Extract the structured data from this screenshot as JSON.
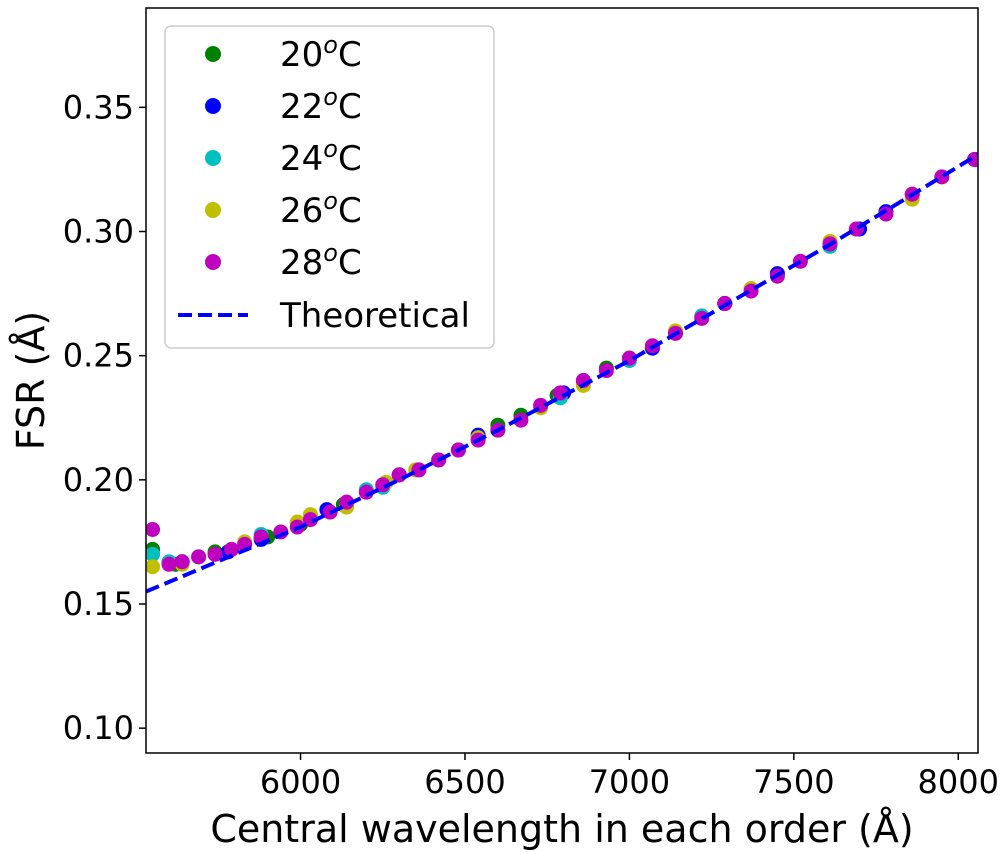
{
  "chart_data": {
    "type": "scatter",
    "title": "",
    "xlabel": "Central wavelength in each order (Å)",
    "ylabel": "FSR (Å)",
    "xlim": [
      5530,
      8060
    ],
    "ylim": [
      0.09,
      0.39
    ],
    "xticks": [
      6000,
      6500,
      7000,
      7500,
      8000
    ],
    "xtick_labels": [
      "6000",
      "6500",
      "7000",
      "7500",
      "8000"
    ],
    "yticks": [
      0.1,
      0.15,
      0.2,
      0.25,
      0.3,
      0.35
    ],
    "ytick_labels": [
      "0.10",
      "0.15",
      "0.20",
      "0.25",
      "0.30",
      "0.35"
    ],
    "grid": false,
    "legend_position": "top-left",
    "series": [
      {
        "name": "20°C",
        "label_base": "20",
        "label_sup": "o",
        "label_tail": "C",
        "color": "#008000",
        "x": [
          5550,
          5620,
          5740,
          5900,
          6000,
          6130,
          6300,
          6480,
          6600,
          6670,
          6780,
          6930,
          7000,
          7140,
          7290,
          7450,
          7610,
          7860,
          8050
        ],
        "y": [
          0.172,
          0.166,
          0.171,
          0.177,
          0.182,
          0.19,
          0.202,
          0.212,
          0.222,
          0.226,
          0.234,
          0.245,
          0.249,
          0.259,
          0.271,
          0.283,
          0.295,
          0.315,
          0.329
        ]
      },
      {
        "name": "22°C",
        "label_base": "22",
        "label_sup": "o",
        "label_tail": "C",
        "color": "#0000ff",
        "x": [
          5640,
          5780,
          5880,
          6080,
          6300,
          6540,
          6800,
          7070,
          7290,
          7450,
          7700,
          7780,
          8050
        ],
        "y": [
          0.167,
          0.171,
          0.176,
          0.188,
          0.202,
          0.218,
          0.235,
          0.253,
          0.271,
          0.283,
          0.301,
          0.308,
          0.329
        ]
      },
      {
        "name": "24°C",
        "label_base": "24",
        "label_sup": "o",
        "label_tail": "C",
        "color": "#00bfbf",
        "x": [
          5550,
          5600,
          5690,
          5880,
          6200,
          6250,
          6420,
          6600,
          6790,
          6860,
          7000,
          7220,
          7370,
          7610
        ],
        "y": [
          0.17,
          0.167,
          0.169,
          0.178,
          0.196,
          0.197,
          0.208,
          0.22,
          0.233,
          0.24,
          0.248,
          0.266,
          0.277,
          0.294
        ]
      },
      {
        "name": "26°C",
        "label_base": "26",
        "label_sup": "o",
        "label_tail": "C",
        "color": "#bfbf00",
        "x": [
          5550,
          5640,
          5830,
          5990,
          6030,
          6140,
          6260,
          6350,
          6540,
          6730,
          6860,
          7140,
          7370,
          7610,
          7860,
          7950
        ],
        "y": [
          0.165,
          0.166,
          0.175,
          0.183,
          0.186,
          0.189,
          0.199,
          0.204,
          0.217,
          0.229,
          0.238,
          0.26,
          0.277,
          0.296,
          0.313,
          0.322
        ]
      },
      {
        "name": "28°C",
        "label_base": "28",
        "label_sup": "o",
        "label_tail": "C",
        "color": "#bf00bf",
        "x": [
          5550,
          5600,
          5640,
          5690,
          5740,
          5790,
          5830,
          5880,
          5940,
          5990,
          6030,
          6090,
          6140,
          6200,
          6250,
          6300,
          6360,
          6420,
          6480,
          6540,
          6600,
          6670,
          6730,
          6790,
          6860,
          6930,
          7000,
          7070,
          7140,
          7220,
          7290,
          7370,
          7450,
          7520,
          7610,
          7690,
          7780,
          7860,
          7950,
          8050
        ],
        "y": [
          0.18,
          0.166,
          0.167,
          0.169,
          0.17,
          0.172,
          0.174,
          0.177,
          0.179,
          0.181,
          0.184,
          0.187,
          0.191,
          0.195,
          0.198,
          0.202,
          0.204,
          0.208,
          0.212,
          0.216,
          0.22,
          0.224,
          0.23,
          0.235,
          0.24,
          0.244,
          0.249,
          0.254,
          0.259,
          0.265,
          0.271,
          0.276,
          0.282,
          0.288,
          0.295,
          0.301,
          0.307,
          0.315,
          0.322,
          0.329
        ]
      }
    ],
    "theoretical": {
      "name": "Theoretical",
      "color": "#0000ff",
      "style": "dashed",
      "x": [
        5530,
        5800,
        6000,
        6300,
        6600,
        7000,
        7300,
        7600,
        7850,
        8060
      ],
      "y": [
        0.155,
        0.17,
        0.181,
        0.2,
        0.22,
        0.248,
        0.271,
        0.294,
        0.314,
        0.331
      ]
    }
  }
}
